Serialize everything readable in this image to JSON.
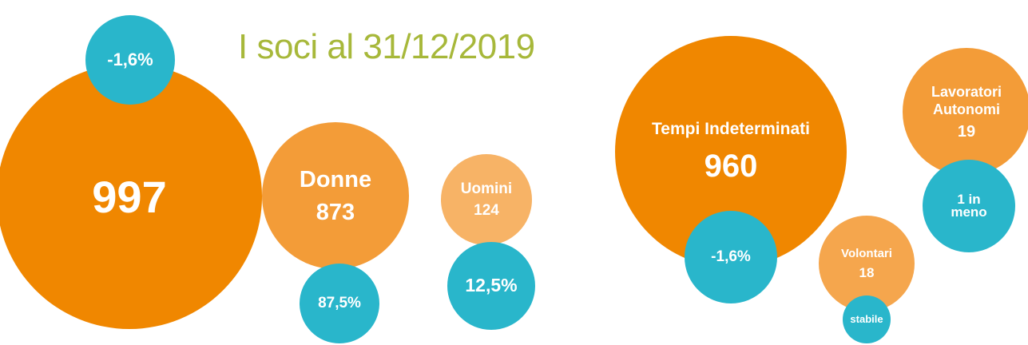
{
  "title": "I soci al 31/12/2019",
  "circles": [
    {
      "value": 997,
      "badge": "-1,6%"
    },
    {
      "label": "Donne",
      "value": 873,
      "badge": "87,5%"
    },
    {
      "label": "Uomini",
      "value": 124,
      "badge": "12,5%"
    },
    {
      "label": "Tempi Indeterminati",
      "value": 960,
      "badge": "-1,6%"
    },
    {
      "label": "Lavoratori Autonomi",
      "value": 19,
      "badge": "1 in meno"
    },
    {
      "label": "Volontari",
      "value": 18,
      "badge": "stabile"
    }
  ]
}
